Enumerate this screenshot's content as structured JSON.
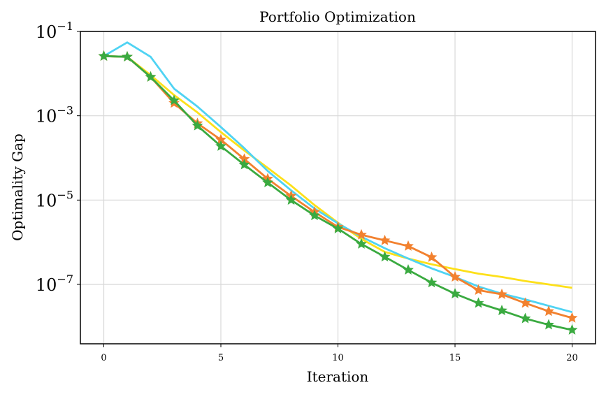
{
  "chart_data": {
    "type": "line",
    "title": "Portfolio Optimization",
    "x_label": "Iteration",
    "y_label": "Optimality Gap",
    "x": [
      0,
      1,
      2,
      3,
      4,
      5,
      6,
      7,
      8,
      9,
      10,
      11,
      12,
      13,
      14,
      15,
      16,
      17,
      18,
      19,
      20
    ],
    "xlim": [
      -1,
      21
    ],
    "xticks": [
      0,
      5,
      10,
      15,
      20
    ],
    "ylim": [
      3.9e-09,
      0.1
    ],
    "log_y": true,
    "grid": true,
    "yticks": [
      {
        "value": 0.1,
        "label": "10",
        "exponent": "−1"
      },
      {
        "value": 0.001,
        "label": "10",
        "exponent": "−3"
      },
      {
        "value": 1e-05,
        "label": "10",
        "exponent": "−5"
      },
      {
        "value": 1e-07,
        "label": "10",
        "exponent": "−7"
      }
    ],
    "series": [
      {
        "color": "#fde01a",
        "marker": "none",
        "values": [
          0.026,
          0.025,
          0.0092,
          0.0031,
          0.0012,
          0.00041,
          0.00015,
          5.8e-05,
          2.2e-05,
          7.6e-06,
          2.9e-06,
          1.2e-06,
          5.9e-07,
          4.1e-07,
          3e-07,
          2.3e-07,
          1.8e-07,
          1.5e-07,
          1.2e-07,
          1e-07,
          8.3e-08
        ]
      },
      {
        "color": "#4fd3f3",
        "marker": "none",
        "values": [
          0.026,
          0.055,
          0.025,
          0.0044,
          0.00165,
          0.00054,
          0.00017,
          4.9e-05,
          1.7e-05,
          6.3e-06,
          2.8e-06,
          1.35e-06,
          7.2e-07,
          4.1e-07,
          2.4e-07,
          1.5e-07,
          8.9e-08,
          6e-08,
          4.4e-08,
          3.1e-08,
          2.2e-08
        ]
      },
      {
        "color": "#f2812f",
        "marker": "star",
        "values": [
          0.026,
          0.025,
          0.0083,
          0.002,
          0.00066,
          0.00027,
          9.4e-05,
          3.2e-05,
          1.25e-05,
          5.2e-06,
          2.3e-06,
          1.5e-06,
          1.1e-06,
          8.1e-07,
          4.4e-07,
          1.5e-07,
          7.3e-08,
          5.8e-08,
          3.6e-08,
          2.3e-08,
          1.6e-08
        ]
      },
      {
        "color": "#3aaa40",
        "marker": "star",
        "values": [
          0.026,
          0.025,
          0.0083,
          0.0023,
          0.00058,
          0.00019,
          6.9e-05,
          2.6e-05,
          1e-05,
          4.3e-06,
          2.1e-06,
          9.1e-07,
          4.5e-07,
          2.2e-07,
          1.1e-07,
          6e-08,
          3.6e-08,
          2.4e-08,
          1.55e-08,
          1.1e-08,
          8.3e-09
        ]
      }
    ]
  }
}
